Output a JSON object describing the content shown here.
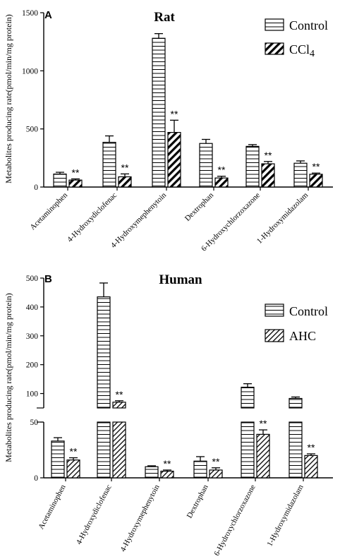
{
  "chart_data": [
    {
      "panel": "A",
      "type": "bar",
      "title": "Rat",
      "ylabel": "Metabolites producing rate(pmol/min/mg protein)",
      "ylim": [
        0,
        1500
      ],
      "yticks": [
        "0",
        "500",
        "1000",
        "1500"
      ],
      "categories": [
        "Acetaminophen",
        "4-Hydroxydiclofenac",
        "4-Hydroxymephenytoin",
        "Dextrophan",
        "6-Hydroxychlorzoxazone",
        "1-Hydroxymidazolam"
      ],
      "series": [
        {
          "name": "Control",
          "pattern": "horizontal-stripes",
          "values": [
            112,
            385,
            1280,
            375,
            350,
            205
          ],
          "errors": [
            15,
            55,
            40,
            35,
            15,
            20
          ]
        },
        {
          "name": "CCl4",
          "pattern": "diagonal-stripes",
          "values": [
            60,
            88,
            470,
            78,
            200,
            110
          ],
          "errors": [
            10,
            25,
            105,
            15,
            20,
            10
          ]
        }
      ],
      "annotations": [
        "**",
        "**",
        "**",
        "**",
        "**",
        "**"
      ],
      "legend": "top-right",
      "legend_labels": [
        "Control",
        "CCl"
      ],
      "legend_subscript": "4"
    },
    {
      "panel": "B",
      "type": "bar",
      "title": "Human",
      "ylabel": "Metabolites producing rate(pmol/min/mg protein)",
      "broken_axis": {
        "lower": [
          0,
          50
        ],
        "upper": [
          50,
          500
        ]
      },
      "yticks_lower": [
        "0",
        "50"
      ],
      "yticks_upper": [
        "100",
        "200",
        "300",
        "400",
        "500"
      ],
      "categories": [
        "Acetaminophen",
        "4-Hydroxydiclofenac",
        "4-Hydroxymephenytoin",
        "Dextrophan",
        "6-Hydroxychlorzoxazone",
        "1-Hydroxymidazolam"
      ],
      "series": [
        {
          "name": "Control",
          "pattern": "horizontal-stripes",
          "values": [
            33,
            435,
            10,
            15,
            122,
            83
          ],
          "errors": [
            3,
            48,
            0.8,
            4,
            12,
            5
          ]
        },
        {
          "name": "AHC",
          "pattern": "diagonal-stripes",
          "values": [
            16,
            70,
            6,
            7,
            39,
            20
          ],
          "errors": [
            2,
            5,
            1,
            2,
            4,
            1.5
          ]
        }
      ],
      "annotations": [
        "**",
        "**",
        "**",
        "**",
        "**",
        "**"
      ],
      "legend": "top-right",
      "legend_labels": [
        "Control",
        "AHC"
      ]
    }
  ]
}
